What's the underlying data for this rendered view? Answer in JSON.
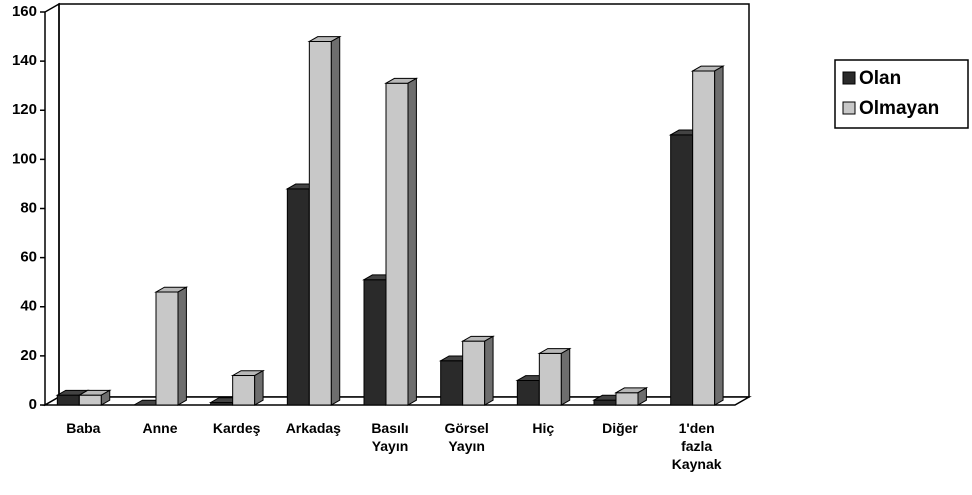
{
  "chart_data": {
    "type": "bar3d",
    "categories": [
      "Baba",
      "Anne",
      "Kardeş",
      "Arkadaş",
      "Basılı Yayın",
      "Görsel Yayın",
      "Hiç",
      "Diğer",
      "1'den fazla Kaynak"
    ],
    "series": [
      {
        "name": "Olan",
        "color": "#2a2a2a",
        "values": [
          4,
          0,
          1,
          88,
          51,
          18,
          10,
          2,
          110
        ]
      },
      {
        "name": "Olmayan",
        "color": "#c8c8c8",
        "values": [
          4,
          46,
          12,
          148,
          131,
          26,
          21,
          5,
          136
        ]
      }
    ],
    "ylim": [
      0,
      160
    ],
    "yticks": [
      0,
      20,
      40,
      60,
      80,
      100,
      120,
      140,
      160
    ],
    "legend": "right"
  }
}
